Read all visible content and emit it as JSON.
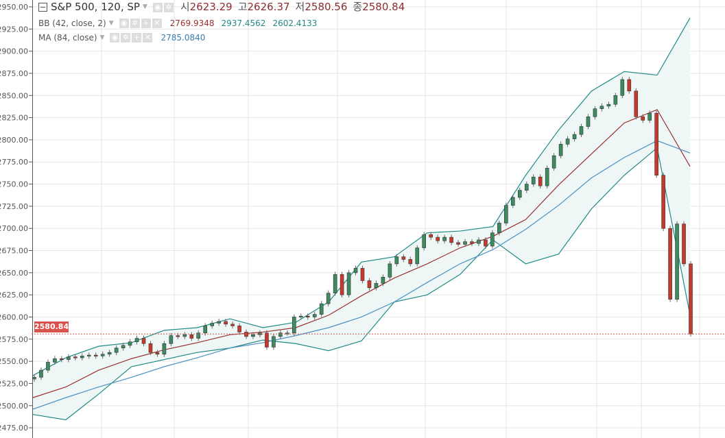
{
  "header": {
    "symbol": "S&P 500, 120, SP",
    "ohlc": [
      {
        "key": "시",
        "value": "2623.29"
      },
      {
        "key": "고",
        "value": "2626.37"
      },
      {
        "key": "저",
        "value": "2580.56"
      },
      {
        "key": "종",
        "value": "2580.84"
      }
    ]
  },
  "indicators": {
    "bb": {
      "label": "BB (42, close, 2)",
      "middle": "2769.9348",
      "upper": "2937.4562",
      "lower": "2602.4133"
    },
    "ma": {
      "label": "MA (84, close)",
      "value": "2785.0840"
    }
  },
  "last_price_label": "2580.84",
  "chart_data": {
    "type": "candlestick",
    "title": "S&P 500, 120, SP",
    "ylim": [
      2470,
      2955
    ],
    "yticks": [
      "2950.00",
      "2925.00",
      "2900.00",
      "2875.00",
      "2850.00",
      "2825.00",
      "2800.00",
      "2775.00",
      "2750.00",
      "2725.00",
      "2700.00",
      "2675.00",
      "2650.00",
      "2625.00",
      "2600.00",
      "2575.00",
      "2550.00",
      "2525.00",
      "2500.00",
      "2475.00"
    ],
    "grid": true,
    "last_price": 2580.84,
    "close": [
      2532,
      2540,
      2549,
      2553,
      2552,
      2555,
      2554,
      2556,
      2557,
      2556,
      2558,
      2560,
      2565,
      2568,
      2572,
      2576,
      2570,
      2560,
      2558,
      2570,
      2579,
      2578,
      2580,
      2576,
      2582,
      2590,
      2593,
      2595,
      2592,
      2590,
      2583,
      2578,
      2580,
      2582,
      2566,
      2578,
      2582,
      2582,
      2600,
      2601,
      2600,
      2603,
      2615,
      2627,
      2648,
      2625,
      2650,
      2655,
      2641,
      2633,
      2638,
      2645,
      2660,
      2668,
      2665,
      2660,
      2678,
      2693,
      2690,
      2686,
      2690,
      2684,
      2682,
      2685,
      2683,
      2687,
      2680,
      2695,
      2706,
      2726,
      2735,
      2743,
      2750,
      2758,
      2748,
      2768,
      2782,
      2795,
      2801,
      2806,
      2815,
      2826,
      2835,
      2838,
      2840,
      2850,
      2868,
      2855,
      2826,
      2822,
      2830,
      2760,
      2700,
      2620,
      2705,
      2660,
      2580.84
    ],
    "bb_upper": [
      2534,
      2554,
      2567,
      2571,
      2585,
      2588,
      2598,
      2588,
      2594,
      2617,
      2662,
      2668,
      2695,
      2697,
      2702,
      2760,
      2811,
      2855,
      2877,
      2873,
      2937.46
    ],
    "bb_middle": [
      2509,
      2521,
      2540,
      2553,
      2563,
      2571,
      2580,
      2583,
      2588,
      2602,
      2624,
      2644,
      2660,
      2678,
      2691,
      2710,
      2749,
      2784,
      2819,
      2834,
      2769.93
    ],
    "bb_lower": [
      2490,
      2484,
      2513,
      2544,
      2552,
      2560,
      2565,
      2574,
      2570,
      2562,
      2573,
      2617,
      2625,
      2648,
      2687,
      2660,
      2671,
      2722,
      2760,
      2791,
      2602.41
    ],
    "ma": [
      2496,
      2509,
      2521,
      2532,
      2544,
      2554,
      2565,
      2571,
      2579,
      2588,
      2600,
      2617,
      2639,
      2660,
      2676,
      2699,
      2726,
      2757,
      2780,
      2799,
      2785.08
    ],
    "colors": {
      "up": "#3d8b5e",
      "down": "#c9392b",
      "bb_band": "#1f8a86",
      "bb_middle": "#9b3030",
      "ma": "#4a90c2",
      "fill": "#eef6f6",
      "last_price": "#d9534f"
    }
  }
}
